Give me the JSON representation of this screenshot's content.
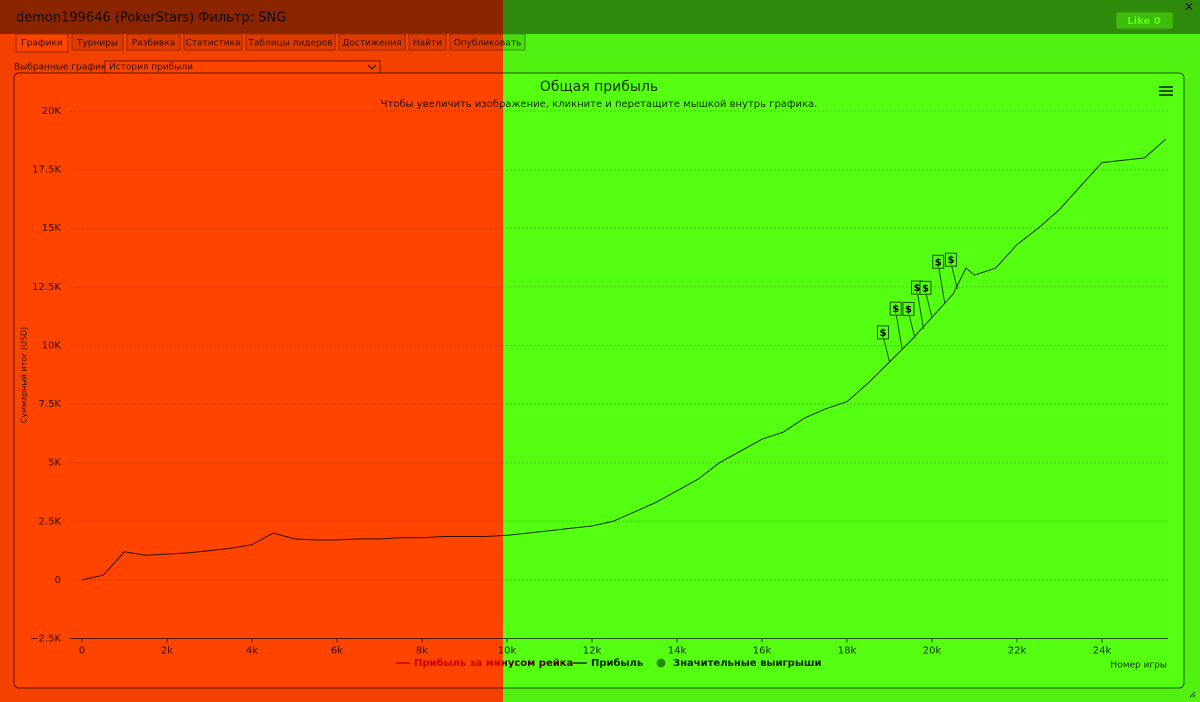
{
  "window": {
    "title": "demon199646 (PokerStars) Фильтр: SNG",
    "like_button": "Like 0",
    "close": "×"
  },
  "tabs": [
    "Графики",
    "Турниры",
    "Разбивка",
    "Статистика",
    "Таблицы лидеров",
    "Достижения",
    "Найти",
    "Опубликовать"
  ],
  "selector": {
    "label": "Выбранные графики:",
    "value": "История прибыли"
  },
  "chart_data": {
    "type": "line",
    "title": "Общая прибыль",
    "subtitle": "Чтобы увеличить изображение, кликните и перетащите мышкой внутрь графика.",
    "y_label": "Суммарный итог (USD)",
    "x_label": "Номер игры",
    "xlim": [
      -282,
      25553
    ],
    "ylim": [
      -2500,
      20500
    ],
    "xticks": [
      0,
      {
        "value": 2000,
        "label": "2k"
      },
      {
        "value": 4000,
        "label": "4k"
      },
      {
        "value": 6000,
        "label": "6k"
      },
      {
        "value": 8000,
        "label": "8k"
      },
      {
        "value": 10000,
        "label": "10k"
      },
      {
        "value": 12000,
        "label": "12k"
      },
      {
        "value": 14000,
        "label": "14k"
      },
      {
        "value": 16000,
        "label": "16k"
      },
      {
        "value": 18000,
        "label": "18k"
      },
      {
        "value": 20000,
        "label": "20k"
      },
      {
        "value": 22000,
        "label": "22k"
      },
      {
        "value": 24000,
        "label": "24k"
      }
    ],
    "yticks": [
      {
        "value": -2500,
        "label": "−2.5K"
      },
      0,
      {
        "value": 2500,
        "label": "2.5K"
      },
      {
        "value": 5000,
        "label": "5K"
      },
      {
        "value": 7500,
        "label": "7.5K"
      },
      {
        "value": 10000,
        "label": "10K"
      },
      {
        "value": 12500,
        "label": "12.5K"
      },
      {
        "value": 15000,
        "label": "15K"
      },
      {
        "value": 17500,
        "label": "17.5K"
      },
      {
        "value": 20000,
        "label": "20K"
      }
    ],
    "grid": true,
    "series": [
      {
        "name": "Прибыль за минусом рейка",
        "color": "#cc0000"
      },
      {
        "name": "Прибыль",
        "color": "#333333",
        "x": [
          0,
          500,
          1000,
          1500,
          2000,
          2500,
          3000,
          3500,
          4000,
          4500,
          5000,
          5500,
          6000,
          6500,
          7000,
          7500,
          8000,
          8500,
          9000,
          9500,
          10000,
          10500,
          11000,
          11500,
          12000,
          12500,
          13000,
          13500,
          14000,
          14500,
          15000,
          15500,
          16000,
          16500,
          17000,
          17500,
          18000,
          18500,
          19000,
          19500,
          20000,
          20500,
          20800,
          21000,
          21500,
          22000,
          22500,
          23000,
          23500,
          24000,
          24500,
          25000,
          25500
        ],
        "values": [
          0,
          200,
          1200,
          1050,
          1100,
          1150,
          1250,
          1350,
          1500,
          2000,
          1750,
          1700,
          1700,
          1750,
          1750,
          1800,
          1800,
          1850,
          1850,
          1850,
          1900,
          2000,
          2100,
          2200,
          2300,
          2500,
          2900,
          3300,
          3800,
          4300,
          5000,
          5500,
          6000,
          6300,
          6900,
          7300,
          7600,
          8400,
          9300,
          10200,
          11200,
          12200,
          13300,
          13000,
          13300,
          14300,
          15000,
          15800,
          16800,
          17800,
          17900,
          18000,
          18800
        ]
      },
      {
        "name": "Значительные выигрыши",
        "color": "#6b8e23",
        "marker_symbol": "$",
        "x": [
          19000,
          19300,
          19600,
          19800,
          20000,
          20300,
          20600
        ],
        "values": [
          9300,
          9800,
          10300,
          10700,
          11200,
          11800,
          12400
        ]
      }
    ]
  }
}
